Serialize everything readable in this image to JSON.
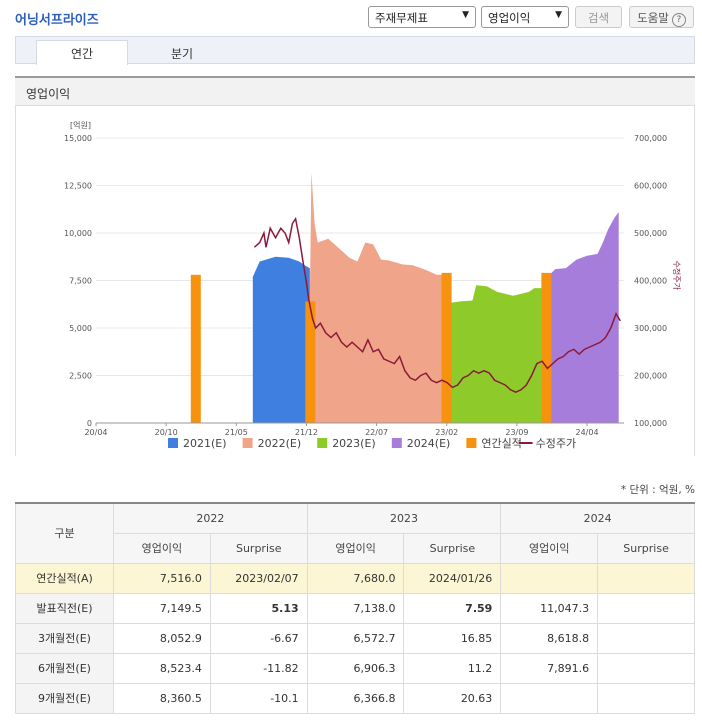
{
  "header": {
    "company": "어닝서프라이즈",
    "select1": "주재무제표",
    "select2": "영업이익",
    "search_label": "검색",
    "help_label": "도움말",
    "help_glyph": "?"
  },
  "tabs": [
    "연간",
    "분기"
  ],
  "section_title": "영업이익",
  "unit_note": "* 단위 : 억원, %",
  "chart_data": {
    "type": "area",
    "left_axis": {
      "unit": "[억원]",
      "range": [
        0,
        15000
      ],
      "ticks": [
        "0",
        "2,500",
        "5,000",
        "7,500",
        "10,000",
        "12,500",
        "15,000"
      ]
    },
    "right_axis": {
      "label": "수정주가",
      "range": [
        100000,
        700000
      ],
      "ticks": [
        "100,000",
        "200,000",
        "300,000",
        "400,000",
        "500,000",
        "600,000",
        "700,000"
      ]
    },
    "x_ticks": [
      "20/04",
      "20/10",
      "21/05",
      "21/12",
      "22/07",
      "23/02",
      "23/09",
      "24/04"
    ],
    "legend": [
      "2021(E)",
      "2022(E)",
      "2023(E)",
      "2024(E)",
      "연간실적",
      "수정주가"
    ],
    "colors": {
      "e2021": "#3f7fdf",
      "e2022": "#f0a48a",
      "e2023": "#8ecb2a",
      "e2024": "#a77ddb",
      "actual": "#f7920e",
      "price": "#8b1a3a"
    },
    "series": [
      {
        "name": "2021(E)",
        "points": [
          [
            0.297,
            7700
          ],
          [
            0.31,
            8500
          ],
          [
            0.34,
            8750
          ],
          [
            0.365,
            8700
          ],
          [
            0.385,
            8500
          ],
          [
            0.395,
            8300
          ],
          [
            0.405,
            8150
          ]
        ]
      },
      {
        "name": "2022(E)",
        "points": [
          [
            0.405,
            6400
          ],
          [
            0.408,
            13200
          ],
          [
            0.414,
            10500
          ],
          [
            0.42,
            9500
          ],
          [
            0.44,
            9700
          ],
          [
            0.46,
            9200
          ],
          [
            0.48,
            8700
          ],
          [
            0.495,
            8500
          ],
          [
            0.51,
            9500
          ],
          [
            0.525,
            9400
          ],
          [
            0.54,
            8600
          ],
          [
            0.555,
            8550
          ],
          [
            0.58,
            8350
          ],
          [
            0.6,
            8300
          ],
          [
            0.625,
            8050
          ],
          [
            0.645,
            7800
          ],
          [
            0.663,
            7800
          ]
        ]
      },
      {
        "name": "2023(E)",
        "points": [
          [
            0.666,
            6300
          ],
          [
            0.69,
            6400
          ],
          [
            0.713,
            6450
          ],
          [
            0.72,
            7250
          ],
          [
            0.74,
            7200
          ],
          [
            0.76,
            6900
          ],
          [
            0.79,
            6700
          ],
          [
            0.82,
            6900
          ],
          [
            0.83,
            7100
          ],
          [
            0.852,
            7100
          ]
        ]
      },
      {
        "name": "2024(E)",
        "points": [
          [
            0.855,
            7700
          ],
          [
            0.87,
            8100
          ],
          [
            0.89,
            8150
          ],
          [
            0.91,
            8600
          ],
          [
            0.93,
            8800
          ],
          [
            0.95,
            8900
          ],
          [
            0.96,
            9500
          ],
          [
            0.97,
            10200
          ],
          [
            0.982,
            10800
          ],
          [
            0.99,
            11100
          ]
        ]
      }
    ],
    "actual_bars": [
      {
        "x": 0.189,
        "value": 7800
      },
      {
        "x": 0.406,
        "value": 6400
      },
      {
        "x": 0.664,
        "value": 7900
      },
      {
        "x": 0.853,
        "value": 7900
      }
    ],
    "price": [
      [
        0.3,
        470000
      ],
      [
        0.31,
        480000
      ],
      [
        0.318,
        500000
      ],
      [
        0.322,
        470000
      ],
      [
        0.33,
        510000
      ],
      [
        0.34,
        490000
      ],
      [
        0.35,
        510000
      ],
      [
        0.358,
        500000
      ],
      [
        0.365,
        480000
      ],
      [
        0.372,
        520000
      ],
      [
        0.378,
        530000
      ],
      [
        0.385,
        490000
      ],
      [
        0.392,
        440000
      ],
      [
        0.398,
        400000
      ],
      [
        0.403,
        360000
      ],
      [
        0.41,
        320000
      ],
      [
        0.416,
        300000
      ],
      [
        0.425,
        310000
      ],
      [
        0.435,
        290000
      ],
      [
        0.445,
        280000
      ],
      [
        0.455,
        290000
      ],
      [
        0.465,
        270000
      ],
      [
        0.475,
        260000
      ],
      [
        0.485,
        270000
      ],
      [
        0.495,
        260000
      ],
      [
        0.505,
        250000
      ],
      [
        0.515,
        275000
      ],
      [
        0.525,
        250000
      ],
      [
        0.535,
        255000
      ],
      [
        0.545,
        235000
      ],
      [
        0.555,
        230000
      ],
      [
        0.565,
        225000
      ],
      [
        0.575,
        240000
      ],
      [
        0.585,
        210000
      ],
      [
        0.595,
        195000
      ],
      [
        0.605,
        190000
      ],
      [
        0.615,
        200000
      ],
      [
        0.625,
        205000
      ],
      [
        0.635,
        190000
      ],
      [
        0.645,
        185000
      ],
      [
        0.655,
        190000
      ],
      [
        0.665,
        185000
      ],
      [
        0.675,
        175000
      ],
      [
        0.685,
        180000
      ],
      [
        0.695,
        195000
      ],
      [
        0.705,
        200000
      ],
      [
        0.715,
        210000
      ],
      [
        0.725,
        205000
      ],
      [
        0.735,
        210000
      ],
      [
        0.745,
        205000
      ],
      [
        0.755,
        190000
      ],
      [
        0.765,
        185000
      ],
      [
        0.775,
        180000
      ],
      [
        0.785,
        170000
      ],
      [
        0.795,
        165000
      ],
      [
        0.805,
        170000
      ],
      [
        0.815,
        180000
      ],
      [
        0.825,
        200000
      ],
      [
        0.835,
        225000
      ],
      [
        0.845,
        230000
      ],
      [
        0.855,
        215000
      ],
      [
        0.865,
        225000
      ],
      [
        0.875,
        235000
      ],
      [
        0.885,
        240000
      ],
      [
        0.895,
        250000
      ],
      [
        0.905,
        255000
      ],
      [
        0.915,
        245000
      ],
      [
        0.925,
        255000
      ],
      [
        0.935,
        260000
      ],
      [
        0.945,
        265000
      ],
      [
        0.955,
        270000
      ],
      [
        0.965,
        280000
      ],
      [
        0.975,
        300000
      ],
      [
        0.985,
        330000
      ],
      [
        0.993,
        315000
      ]
    ]
  },
  "table": {
    "header_label": "구분",
    "years": [
      "2022",
      "2023",
      "2024"
    ],
    "subheaders": [
      "영업이익",
      "Surprise",
      "영업이익",
      "Surprise",
      "영업이익",
      "Surprise"
    ],
    "rows": [
      {
        "label": "연간실적(A)",
        "cells": [
          "7,516.0",
          "2023/02/07",
          "7,680.0",
          "2024/01/26",
          "",
          ""
        ]
      },
      {
        "label": "발표직전(E)",
        "cells": [
          "7,149.5",
          "5.13",
          "7,138.0",
          "7.59",
          "11,047.3",
          ""
        ]
      },
      {
        "label": "3개월전(E)",
        "cells": [
          "8,052.9",
          "-6.67",
          "6,572.7",
          "16.85",
          "8,618.8",
          ""
        ]
      },
      {
        "label": "6개월전(E)",
        "cells": [
          "8,523.4",
          "-11.82",
          "6,906.3",
          "11.2",
          "7,891.6",
          ""
        ]
      },
      {
        "label": "9개월전(E)",
        "cells": [
          "8,360.5",
          "-10.1",
          "6,366.8",
          "20.63",
          "",
          ""
        ]
      }
    ]
  }
}
